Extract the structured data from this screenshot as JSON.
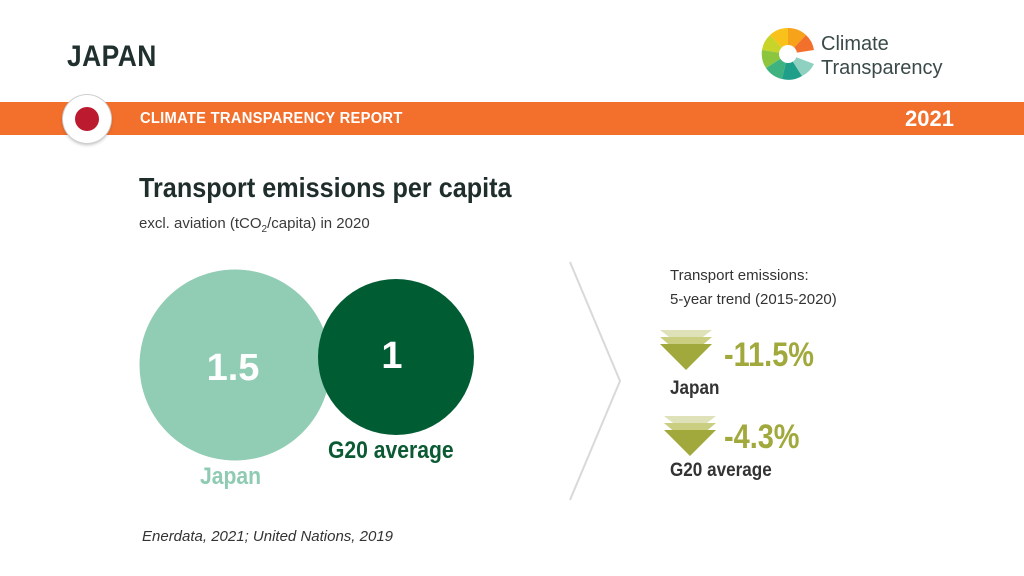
{
  "header": {
    "country": "JAPAN",
    "logo_line1": "Climate",
    "logo_line2": "Transparency",
    "band_label": "CLIMATE TRANSPARENCY REPORT",
    "year": "2021"
  },
  "colors": {
    "band": "#f26f2c",
    "japan_circle": "#8fcbb3",
    "g20_circle": "#005c32",
    "trend_arrow": "#a1a93c",
    "flag_red": "#bc1a2e"
  },
  "chart_data": {
    "type": "bubble",
    "title": "Transport emissions per capita",
    "subtitle": "excl. aviation (tCO2/capita) in 2020",
    "series": [
      {
        "name": "Japan",
        "value": 1.5,
        "value_label": "1.5"
      },
      {
        "name": "G20 average",
        "value": 1,
        "value_label": "1"
      }
    ]
  },
  "trend": {
    "title_line1": "Transport emissions:",
    "title_line2": "5-year trend (2015-2020)",
    "items": [
      {
        "label": "Japan",
        "value": "-11.5%"
      },
      {
        "label": "G20 average",
        "value": "-4.3%"
      }
    ]
  },
  "source": "Enerdata, 2021; United Nations, 2019"
}
